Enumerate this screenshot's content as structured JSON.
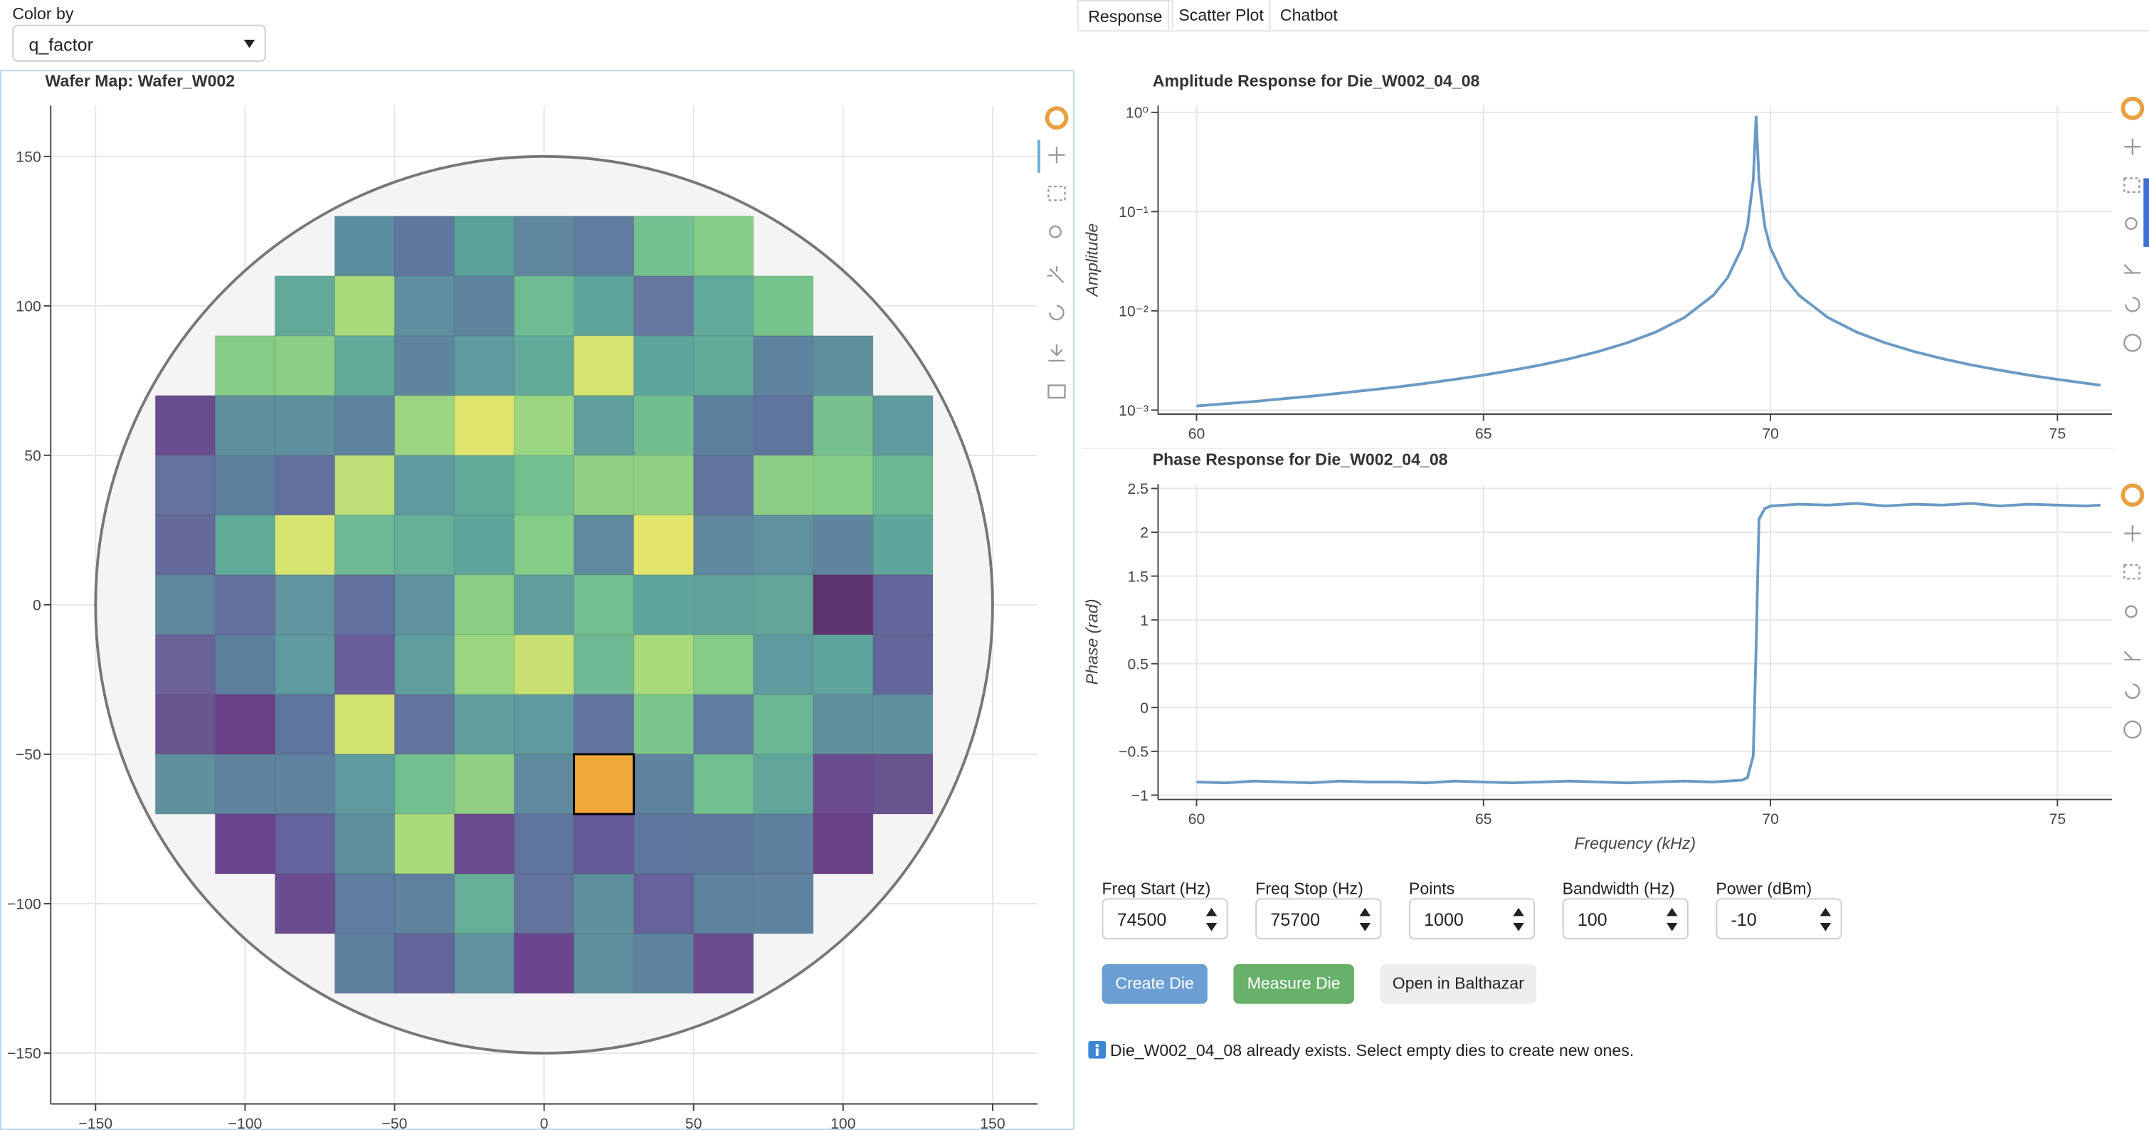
{
  "controls": {
    "color_by_label": "Color by",
    "color_by_value": "q_factor"
  },
  "tabs": [
    "Response",
    "Scatter Plot",
    "Chatbot"
  ],
  "chart_data": [
    {
      "type": "wafer",
      "title": "Wafer Map: Wafer_W002",
      "xlim": [
        -165,
        165
      ],
      "ylim": [
        -167,
        167
      ],
      "xticks": [
        {
          "value": -150,
          "label": "−150"
        },
        {
          "value": -100,
          "label": "−100"
        },
        {
          "value": -50,
          "label": "−50"
        },
        0,
        50,
        100,
        150
      ],
      "yticks": [
        {
          "value": -150,
          "label": "−150"
        },
        {
          "value": -100,
          "label": "−100"
        },
        {
          "value": -50,
          "label": "−50"
        },
        0,
        50,
        100,
        150
      ],
      "grid": true,
      "wafer_radius": 150,
      "die_size": 20,
      "selected": {
        "x": 20,
        "y": -60,
        "color": "#000000"
      },
      "rows": [
        {
          "y": 120,
          "x": [
            -60,
            -40,
            -20,
            0,
            20,
            40,
            60
          ],
          "colors": [
            "#5b8ea0",
            "#60789e",
            "#5aa39a",
            "#5f879e",
            "#5f7d9e",
            "#74c08f",
            "#84cc88"
          ]
        },
        {
          "y": 100,
          "x": [
            -80,
            -60,
            -40,
            -20,
            0,
            20,
            40,
            60,
            80
          ],
          "colors": [
            "#62a99a",
            "#a8da7c",
            "#5f8ea0",
            "#5f849e",
            "#6ebd92",
            "#5fa59b",
            "#66779f",
            "#61a99a",
            "#78c48e"
          ]
        },
        {
          "y": 80,
          "x": [
            -100,
            -80,
            -60,
            -40,
            -20,
            0,
            20,
            40,
            60,
            80,
            100
          ],
          "colors": [
            "#84cc88",
            "#8acf85",
            "#64aa98",
            "#5f849e",
            "#5f9a9e",
            "#62ab99",
            "#d5e370",
            "#5fa59b",
            "#62ab99",
            "#5e839e",
            "#5f909e"
          ]
        },
        {
          "y": 60,
          "x": [
            -120,
            -100,
            -80,
            -60,
            -40,
            -20,
            0,
            20,
            40,
            60,
            80,
            100,
            120
          ],
          "colors": [
            "#684e8f",
            "#5f8e9e",
            "#5f909e",
            "#5f839e",
            "#9cd580",
            "#dee46c",
            "#9ad580",
            "#5f9e9d",
            "#73be8f",
            "#5d7f9e",
            "#5f749e",
            "#76c08e",
            "#5f9a9e"
          ]
        },
        {
          "y": 40,
          "x": [
            -120,
            -100,
            -80,
            -60,
            -40,
            -20,
            0,
            20,
            40,
            60,
            80,
            100,
            120
          ],
          "colors": [
            "#65729e",
            "#5f809e",
            "#62709e",
            "#bfde77",
            "#5f9a9e",
            "#64aa98",
            "#74bf8f",
            "#92d183",
            "#8fd083",
            "#62739e",
            "#8acf85",
            "#86cc87",
            "#6ab695"
          ]
        },
        {
          "y": 20,
          "x": [
            -120,
            -100,
            -80,
            -60,
            -40,
            -20,
            0,
            20,
            40,
            60,
            80,
            100,
            120
          ],
          "colors": [
            "#656a9b",
            "#62ab99",
            "#d7e36f",
            "#6eb893",
            "#66ae97",
            "#5fa59b",
            "#84cc88",
            "#5f8a9e",
            "#e3e56a",
            "#5f879e",
            "#5f929e",
            "#5f859e",
            "#5ea59b"
          ]
        },
        {
          "y": 0,
          "x": [
            -120,
            -100,
            -80,
            -60,
            -40,
            -20,
            0,
            20,
            40,
            60,
            80,
            100,
            120
          ],
          "colors": [
            "#5f879e",
            "#656f9e",
            "#5f959e",
            "#62709e",
            "#5f929e",
            "#8acf85",
            "#5f9e9d",
            "#74bf8f",
            "#5fa59b",
            "#5fa29c",
            "#62a69b",
            "#5e3470",
            "#62669b"
          ]
        },
        {
          "y": -20,
          "x": [
            -120,
            -100,
            -80,
            -60,
            -40,
            -20,
            0,
            20,
            40,
            60,
            80,
            100,
            120
          ],
          "colors": [
            "#6a6299",
            "#5d7f9e",
            "#5f9a9e",
            "#6a5e99",
            "#5f9e9d",
            "#9ad580",
            "#c8e072",
            "#6eb893",
            "#a9da7c",
            "#84cc88",
            "#5f9a9e",
            "#5fa59b",
            "#62669b"
          ]
        },
        {
          "y": -40,
          "x": [
            -120,
            -100,
            -80,
            -60,
            -40,
            -20,
            0,
            20,
            40,
            60,
            80,
            100,
            120
          ],
          "colors": [
            "#6a5591",
            "#6a4087",
            "#5f749e",
            "#d2e270",
            "#62739e",
            "#5f9e9d",
            "#5f9a9e",
            "#62739e",
            "#7cc58c",
            "#5f7d9e",
            "#6ab695",
            "#5f909e",
            "#5f909e"
          ]
        },
        {
          "y": -60,
          "x": [
            -120,
            -100,
            -80,
            -60,
            -40,
            -20,
            0,
            20,
            40,
            60,
            80,
            100,
            120
          ],
          "colors": [
            "#5f909e",
            "#5f859e",
            "#5f829e",
            "#5f9a9e",
            "#74bf8f",
            "#8fd083",
            "#5f8a9e",
            "#f0a83a",
            "#5f829e",
            "#74bf8f",
            "#62a69b",
            "#6a4c8f",
            "#68548f"
          ]
        },
        {
          "y": -80,
          "x": [
            -100,
            -80,
            -60,
            -40,
            -20,
            0,
            20,
            40,
            60,
            80,
            100
          ],
          "colors": [
            "#68458e",
            "#63629c",
            "#5f909e",
            "#a9da7c",
            "#6a4c8f",
            "#5f749e",
            "#66599a",
            "#5f769e",
            "#5f789e",
            "#5f7f9e",
            "#6a4087"
          ]
        },
        {
          "y": -100,
          "x": [
            -80,
            -60,
            -40,
            -20,
            0,
            20,
            40,
            60,
            80
          ],
          "colors": [
            "#6a4c8f",
            "#5f7d9e",
            "#5f829e",
            "#66ae97",
            "#62749e",
            "#5f909e",
            "#66629b",
            "#5f829e",
            "#5f829e"
          ]
        },
        {
          "y": -120,
          "x": [
            -60,
            -40,
            -20,
            0,
            20,
            40,
            60
          ],
          "colors": [
            "#5f7f9e",
            "#62669b",
            "#5f929e",
            "#68458e",
            "#5f8e9e",
            "#5f859e",
            "#6a4c8f"
          ]
        }
      ]
    },
    {
      "type": "line",
      "title": "Amplitude Response for Die_W002_04_08",
      "ylabel": "Amplitude",
      "log_y": true,
      "grid": true,
      "color": "#6a9ac4",
      "xlim": [
        59.33,
        75.95
      ],
      "xticks": [
        60,
        65,
        70,
        75
      ],
      "ylim": [
        0.00091,
        1.17
      ],
      "yticks": [
        {
          "value": 0.001,
          "label": "10⁻³"
        },
        {
          "value": 0.01,
          "label": "10⁻²"
        },
        {
          "value": 0.1,
          "label": "10⁻¹"
        },
        {
          "value": 1,
          "label": "10⁰"
        }
      ],
      "x": [
        60,
        60.5,
        61,
        61.5,
        62,
        62.5,
        63,
        63.5,
        64,
        64.5,
        65,
        65.5,
        66,
        66.5,
        67,
        67.5,
        68,
        68.5,
        69,
        69.25,
        69.5,
        69.6,
        69.7,
        69.75,
        69.8,
        69.9,
        70,
        70.25,
        70.5,
        71,
        71.5,
        72,
        72.5,
        73,
        73.5,
        74,
        74.5,
        75,
        75.5,
        75.75
      ],
      "values": [
        0.0011,
        0.00116,
        0.00122,
        0.0013,
        0.00138,
        0.00148,
        0.00159,
        0.00171,
        0.00186,
        0.00204,
        0.00225,
        0.00252,
        0.00285,
        0.00329,
        0.00389,
        0.00476,
        0.00611,
        0.00856,
        0.0143,
        0.0214,
        0.0428,
        0.0711,
        0.209,
        0.92,
        0.209,
        0.0711,
        0.0428,
        0.0214,
        0.0143,
        0.00856,
        0.00611,
        0.00476,
        0.00389,
        0.00329,
        0.00285,
        0.00252,
        0.00225,
        0.00204,
        0.00186,
        0.00178
      ]
    },
    {
      "type": "line",
      "title": "Phase Response for Die_W002_04_08",
      "ylabel": "Phase (rad)",
      "xlabel": "Frequency (kHz)",
      "grid": true,
      "color": "#6a9ac4",
      "xlim": [
        59.33,
        75.95
      ],
      "xticks": [
        60,
        65,
        70,
        75
      ],
      "ylim": [
        -1.05,
        2.55
      ],
      "yticks": [
        {
          "value": -1,
          "label": "−1"
        },
        {
          "value": -0.5,
          "label": "−0.5"
        },
        0,
        0.5,
        1,
        1.5,
        2,
        2.5
      ],
      "x": [
        60,
        60.5,
        61,
        61.5,
        62,
        62.5,
        63,
        63.5,
        64,
        64.5,
        65,
        65.5,
        66,
        66.5,
        67,
        67.5,
        68,
        68.5,
        69,
        69.25,
        69.5,
        69.6,
        69.7,
        69.75,
        69.8,
        69.9,
        70,
        70.25,
        70.5,
        71,
        71.5,
        72,
        72.5,
        73,
        73.5,
        74,
        74.5,
        75,
        75.5,
        75.75
      ],
      "values": [
        -0.85,
        -0.86,
        -0.84,
        -0.85,
        -0.86,
        -0.84,
        -0.85,
        -0.85,
        -0.86,
        -0.84,
        -0.85,
        -0.86,
        -0.85,
        -0.84,
        -0.85,
        -0.86,
        -0.85,
        -0.84,
        -0.85,
        -0.84,
        -0.83,
        -0.8,
        -0.55,
        0.7,
        2.15,
        2.27,
        2.3,
        2.31,
        2.32,
        2.31,
        2.33,
        2.3,
        2.32,
        2.31,
        2.33,
        2.3,
        2.32,
        2.31,
        2.3,
        2.31
      ]
    }
  ],
  "form": {
    "fields": [
      {
        "label": "Freq Start (Hz)",
        "value": 74500
      },
      {
        "label": "Freq Stop (Hz)",
        "value": 75700
      },
      {
        "label": "Points",
        "value": 1000
      },
      {
        "label": "Bandwidth (Hz)",
        "value": 100
      },
      {
        "label": "Power (dBm)",
        "value": -10
      }
    ],
    "buttons": [
      "Create Die",
      "Measure Die",
      "Open in Balthazar"
    ],
    "message": "Die_W002_04_08 already exists. Select empty dies to create new ones."
  }
}
